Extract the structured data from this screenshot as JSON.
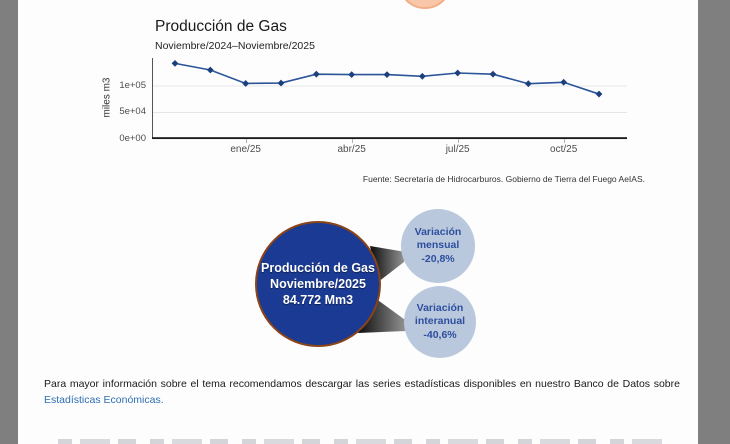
{
  "chart": {
    "title": "Producción de Gas",
    "subtitle": "Noviembre/2024–Noviembre/2025",
    "y_axis_label": "miles m3",
    "source": "Fuente: Secretaría de Hidrocarburos. Gobierno de Tierra del Fuego AeIAS.",
    "line_color": "#2a5599",
    "marker_color": "#1c3f7e"
  },
  "chart_data": {
    "type": "line",
    "title": "Producción de Gas",
    "subtitle": "Noviembre/2024–Noviembre/2025",
    "ylabel": "miles m3",
    "x": [
      "nov/24",
      "dic/24",
      "ene/25",
      "feb/25",
      "mar/25",
      "abr/25",
      "may/25",
      "jun/25",
      "jul/25",
      "ago/25",
      "sep/25",
      "oct/25",
      "nov/25"
    ],
    "values": [
      142700,
      130200,
      104800,
      105500,
      122300,
      121500,
      121500,
      118300,
      124500,
      122300,
      104300,
      107000,
      84772
    ],
    "ylim": [
      0,
      152800
    ],
    "y_ticks": [
      {
        "label": "1e+05",
        "value": 100000
      },
      {
        "label": "5e+04",
        "value": 50000
      },
      {
        "label": "0e+00",
        "value": 0
      }
    ],
    "x_ticks": [
      {
        "label": "ene/25",
        "index": 2
      },
      {
        "label": "abr/25",
        "index": 5
      },
      {
        "label": "jul/25",
        "index": 8
      },
      {
        "label": "oct/25",
        "index": 11
      }
    ],
    "grid": true,
    "legend": false
  },
  "infographic": {
    "main_circle": {
      "line1": "Producción de Gas",
      "line2": "Noviembre/2025",
      "line3": "84.772 Mm3",
      "bg": "#1a3a94",
      "border": "#8a4418"
    },
    "monthly": {
      "line1": "Variación",
      "line2": "mensual",
      "line3": "-20,8%",
      "bg": "#b9c8dd",
      "text_color": "#2d4f9e"
    },
    "yearly": {
      "line1": "Variación",
      "line2": "interanual",
      "line3": "-40,6%",
      "bg": "#b9c8dd",
      "text_color": "#2d4f9e"
    }
  },
  "footer": {
    "text": "Para mayor información sobre el tema recomendamos descargar las series estadísticas disponibles en nuestro Banco de Datos sobre",
    "link": "Estadísticas Económicas."
  }
}
